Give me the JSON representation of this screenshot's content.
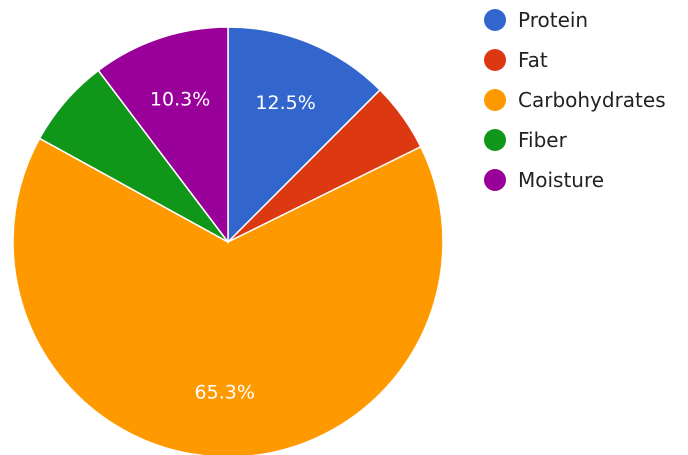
{
  "chart_data": {
    "type": "pie",
    "title": "",
    "categories": [
      "Protein",
      "Fat",
      "Carbohydrates",
      "Fiber",
      "Moisture"
    ],
    "values": [
      12.5,
      5.2,
      65.3,
      6.7,
      10.3
    ],
    "colors": [
      "#3366cc",
      "#dc3912",
      "#ff9900",
      "#109618",
      "#990099"
    ],
    "data_labels": [
      "12.5%",
      "",
      "65.3%",
      "",
      "10.3%"
    ],
    "legend_position": "right",
    "start_angle": "12 o'clock, clockwise"
  }
}
